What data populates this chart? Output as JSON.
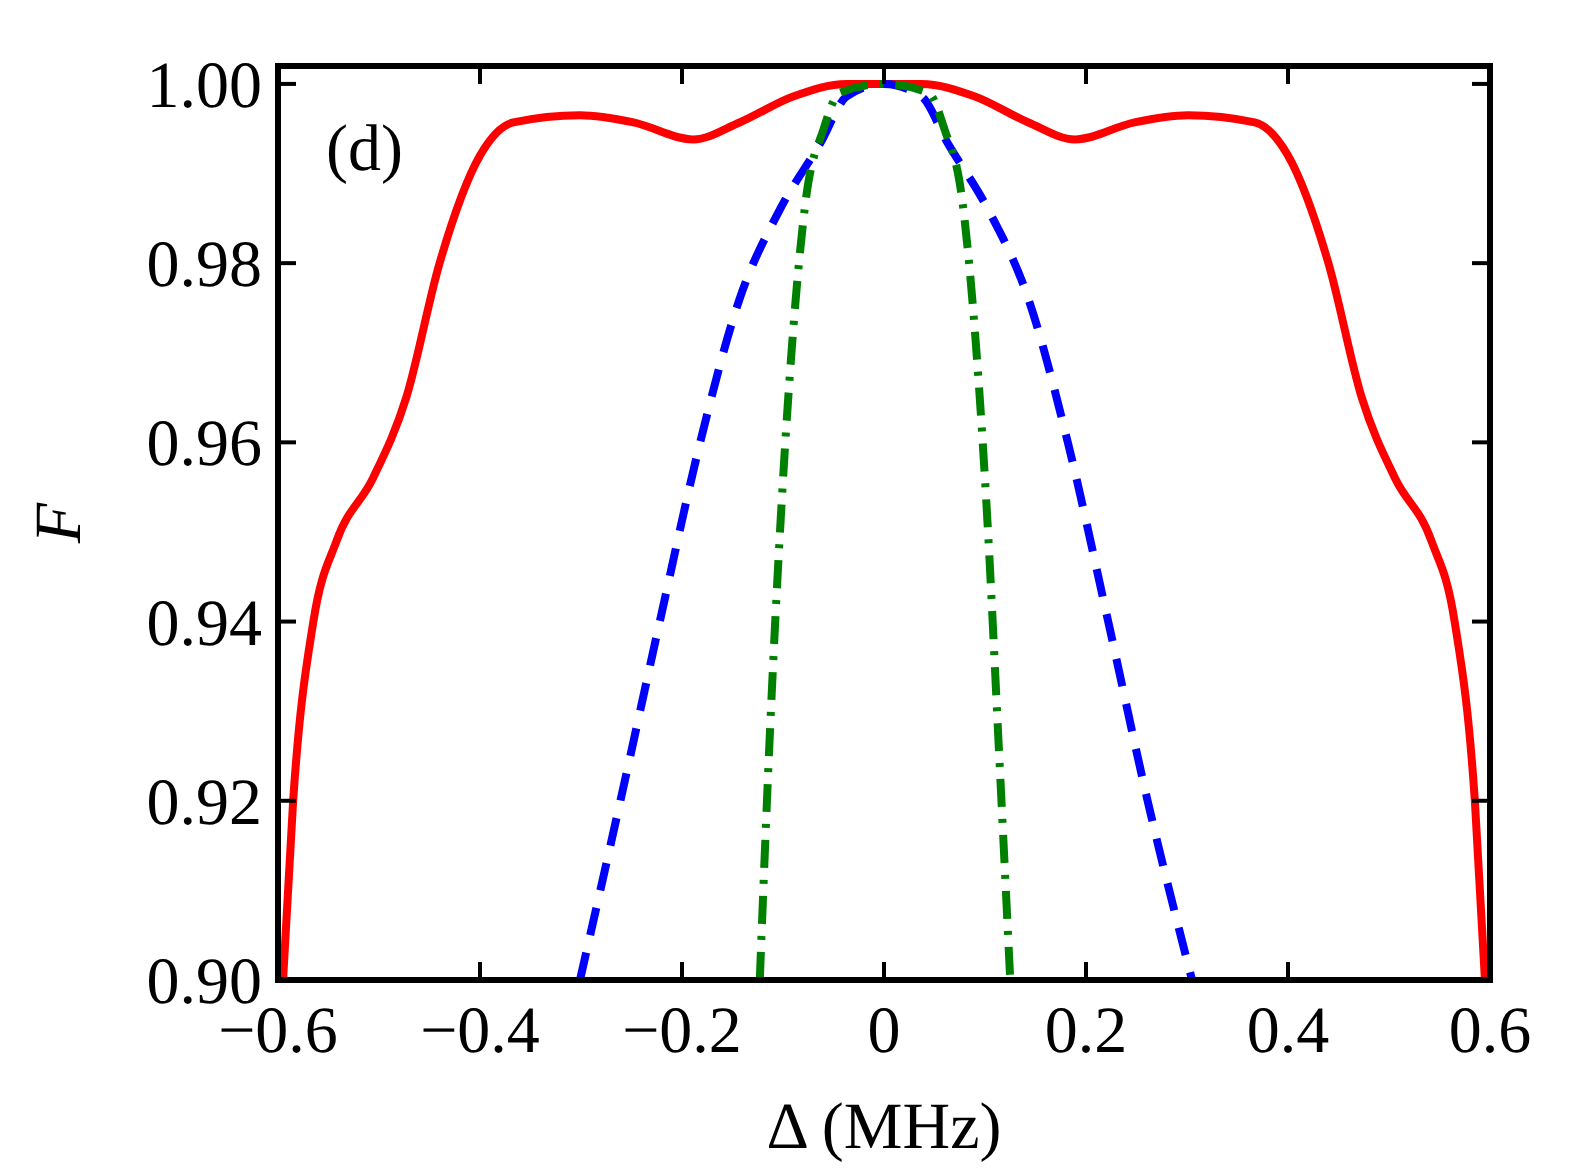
{
  "chart_data": {
    "type": "line",
    "xlabel": "Δ (MHz)",
    "ylabel": "F",
    "annotations": [
      "(d)"
    ],
    "xlim": [
      -0.6,
      0.6
    ],
    "ylim": [
      0.9,
      1.002
    ],
    "xticks": [
      {
        "value": -0.6,
        "label": "−0.6"
      },
      {
        "value": -0.4,
        "label": "−0.4"
      },
      {
        "value": -0.2,
        "label": "−0.2"
      },
      0,
      0.2,
      0.4,
      0.6
    ],
    "yticks": [
      {
        "value": 0.9,
        "label": "0.90"
      },
      {
        "value": 0.92,
        "label": "0.92"
      },
      {
        "value": 0.94,
        "label": "0.94"
      },
      {
        "value": 0.96,
        "label": "0.96"
      },
      {
        "value": 0.98,
        "label": "0.98"
      },
      {
        "value": 1.0,
        "label": "1.00"
      }
    ],
    "grid": false,
    "series": [
      {
        "color": "#ff0000",
        "line_style": "solid",
        "x": [
          -0.595,
          -0.585,
          -0.565,
          -0.542,
          -0.506,
          -0.473,
          -0.44,
          -0.4,
          -0.367,
          -0.301,
          -0.248,
          -0.189,
          -0.143,
          -0.09,
          -0.037,
          0,
          0.037,
          0.09,
          0.143,
          0.189,
          0.248,
          0.301,
          0.367,
          0.4,
          0.44,
          0.473,
          0.506,
          0.542,
          0.565,
          0.585,
          0.595
        ],
        "values": [
          0.9,
          0.92,
          0.94,
          0.949,
          0.956,
          0.965,
          0.98,
          0.992,
          0.9957,
          0.9965,
          0.9957,
          0.9938,
          0.9957,
          0.9986,
          1.0,
          1.0,
          1.0,
          0.9986,
          0.9957,
          0.9938,
          0.9957,
          0.9965,
          0.9957,
          0.992,
          0.98,
          0.965,
          0.956,
          0.949,
          0.94,
          0.92,
          0.9
        ]
      },
      {
        "color": "#0000ff",
        "line_style": "dashed",
        "x": [
          -0.301,
          -0.261,
          -0.222,
          -0.182,
          -0.143,
          -0.103,
          -0.063,
          -0.037,
          0,
          0.037,
          0.063,
          0.103,
          0.143,
          0.182,
          0.222,
          0.261,
          0.305
        ],
        "values": [
          0.9,
          0.92,
          0.94,
          0.96,
          0.976,
          0.986,
          0.9934,
          0.9986,
          1.0,
          0.9986,
          0.9934,
          0.986,
          0.976,
          0.96,
          0.94,
          0.92,
          0.9
        ]
      },
      {
        "color": "#008000",
        "line_style": "dashdot",
        "x": [
          -0.123,
          -0.113,
          -0.103,
          -0.09,
          -0.077,
          -0.06,
          -0.044,
          0,
          0.044,
          0.06,
          0.077,
          0.09,
          0.103,
          0.113,
          0.125
        ],
        "values": [
          0.9,
          0.9275,
          0.95,
          0.9724,
          0.9874,
          0.9949,
          0.999,
          1.0,
          0.999,
          0.9949,
          0.9874,
          0.9724,
          0.95,
          0.9275,
          0.9
        ]
      }
    ]
  }
}
